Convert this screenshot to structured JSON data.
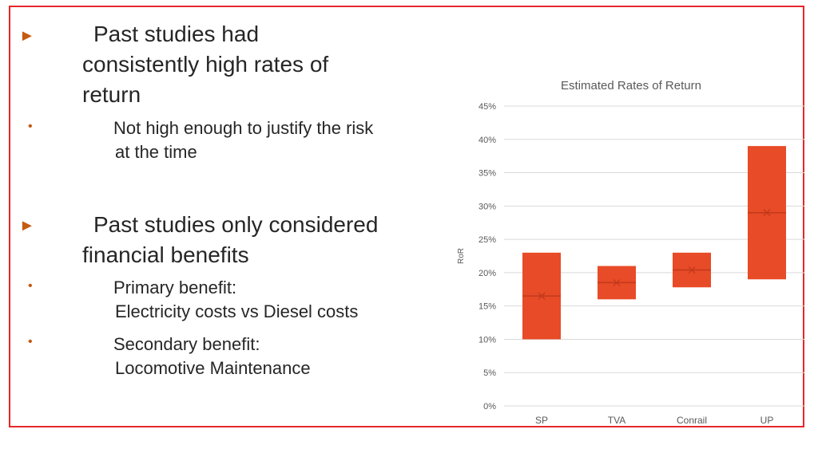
{
  "bullets": [
    {
      "level": 1,
      "lines": [
        "Past studies had",
        "consistently high rates of",
        "return"
      ]
    },
    {
      "level": 2,
      "lines": [
        "Not high enough to justify the risk",
        "at the time"
      ]
    },
    {
      "level": 1,
      "lines": [
        "Past studies only considered",
        "financial benefits"
      ]
    },
    {
      "level": 2,
      "lines": [
        "Primary benefit:",
        "Electricity costs vs Diesel costs"
      ]
    },
    {
      "level": 2,
      "lines": [
        "Secondary benefit:",
        "Locomotive Maintenance"
      ]
    }
  ],
  "chart_data": {
    "type": "box",
    "title": "Estimated Rates of Return",
    "xlabel": "",
    "ylabel": "RoR",
    "categories": [
      "SP",
      "TVA",
      "Conrail",
      "UP"
    ],
    "series": [
      {
        "low": [
          10,
          16,
          17.8,
          19
        ],
        "high": [
          23,
          21,
          23,
          39
        ],
        "median": [
          16.5,
          18.5,
          20.4,
          29
        ],
        "mean": [
          16.5,
          18.5,
          20.4,
          29
        ]
      }
    ],
    "ylim": [
      0,
      45
    ],
    "yticks": [
      "0%",
      "5%",
      "10%",
      "15%",
      "20%",
      "25%",
      "30%",
      "35%",
      "40%",
      "45%"
    ],
    "grid": true,
    "color": "#e84b27"
  }
}
